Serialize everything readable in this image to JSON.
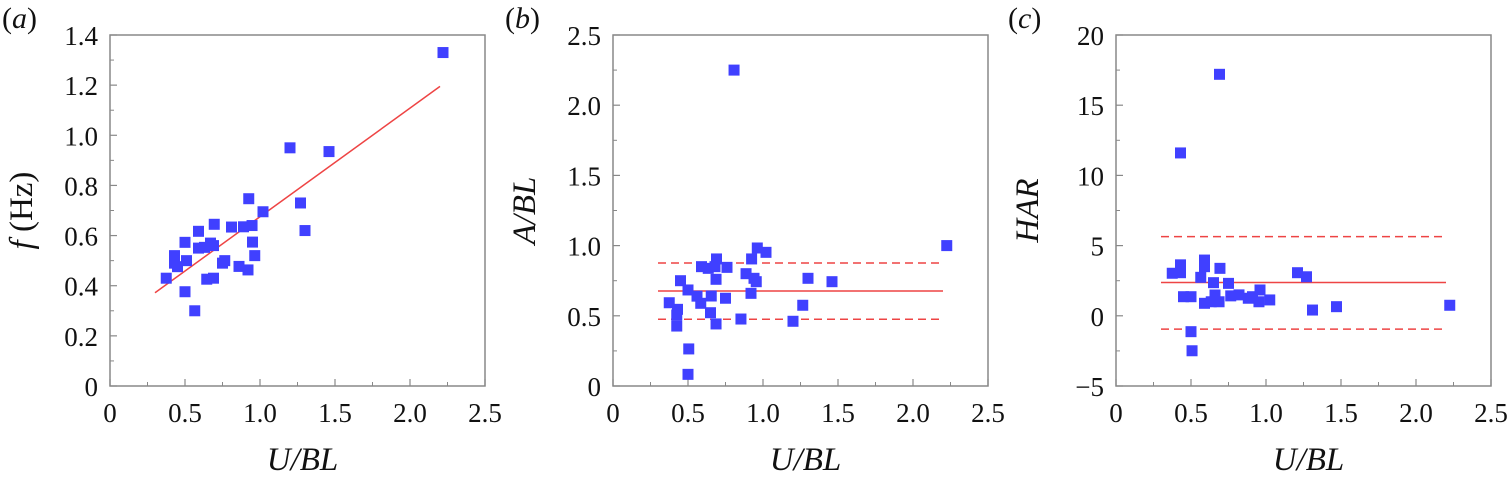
{
  "figure": {
    "marker_color": "#4040ff",
    "line_color": "#ee4444",
    "frame_color": "#888888"
  },
  "chart_data": [
    {
      "type": "scatter",
      "panel_label": "(a)",
      "title": "",
      "xlabel": "U/BL",
      "ylabel": "f (Hz)",
      "xlim": [
        0,
        2.5
      ],
      "ylim": [
        0,
        1.4
      ],
      "xticks": [
        0,
        0.5,
        1.0,
        1.5,
        2.0,
        2.5
      ],
      "xtick_labels": [
        "0",
        "0.5",
        "1.0",
        "1.5",
        "2.0",
        "2.5"
      ],
      "yticks": [
        0,
        0.2,
        0.4,
        0.6,
        0.8,
        1.0,
        1.2,
        1.4
      ],
      "ytick_labels": [
        "0",
        "0.2",
        "0.4",
        "0.6",
        "0.8",
        "1.0",
        "1.2",
        "1.4"
      ],
      "grid": false,
      "series": [
        {
          "name": "data",
          "marker": "square",
          "x": [
            0.375,
            0.43,
            0.43,
            0.45,
            0.5,
            0.51,
            0.5,
            0.565,
            0.59,
            0.59,
            0.645,
            0.69,
            0.695,
            0.67,
            0.69,
            0.63,
            0.75,
            0.765,
            0.81,
            0.86,
            0.89,
            0.925,
            0.947,
            0.92,
            0.95,
            0.965,
            1.02,
            1.2,
            1.27,
            1.3,
            1.46,
            2.22
          ],
          "y": [
            0.43,
            0.52,
            0.49,
            0.476,
            0.573,
            0.5,
            0.376,
            0.3,
            0.617,
            0.55,
            0.426,
            0.43,
            0.645,
            0.57,
            0.56,
            0.553,
            0.49,
            0.5,
            0.634,
            0.477,
            0.635,
            0.747,
            0.64,
            0.463,
            0.574,
            0.52,
            0.695,
            0.95,
            0.73,
            0.62,
            0.935,
            1.33
          ]
        }
      ],
      "lines": [
        {
          "name": "linear-fit",
          "style": "solid",
          "x": [
            0.3,
            2.2
          ],
          "y": [
            0.372,
            1.195
          ]
        }
      ]
    },
    {
      "type": "scatter",
      "panel_label": "(b)",
      "title": "",
      "xlabel": "U/BL",
      "ylabel": "A/BL",
      "xlim": [
        0,
        2.5
      ],
      "ylim": [
        0,
        2.5
      ],
      "xticks": [
        0,
        0.5,
        1.0,
        1.5,
        2.0,
        2.5
      ],
      "xtick_labels": [
        "0",
        "0.5",
        "1.0",
        "1.5",
        "2.0",
        "2.5"
      ],
      "yticks": [
        0,
        0.5,
        1.0,
        1.5,
        2.0,
        2.5
      ],
      "ytick_labels": [
        "0",
        "0.5",
        "1.0",
        "1.5",
        "2.0",
        "2.5"
      ],
      "grid": false,
      "series": [
        {
          "name": "data",
          "marker": "square",
          "x": [
            0.375,
            0.43,
            0.425,
            0.425,
            0.45,
            0.5,
            0.505,
            0.5,
            0.56,
            0.585,
            0.59,
            0.635,
            0.655,
            0.65,
            0.68,
            0.69,
            0.687,
            0.687,
            0.75,
            0.76,
            0.807,
            0.853,
            0.887,
            0.924,
            0.92,
            0.94,
            0.955,
            0.962,
            1.02,
            1.2,
            1.265,
            1.3,
            1.46,
            2.225
          ],
          "y": [
            0.593,
            0.546,
            0.506,
            0.427,
            0.75,
            0.684,
            0.264,
            0.083,
            0.64,
            0.589,
            0.85,
            0.838,
            0.641,
            0.522,
            0.85,
            0.905,
            0.76,
            0.442,
            0.625,
            0.845,
            2.25,
            0.477,
            0.8,
            0.905,
            0.66,
            0.767,
            0.743,
            0.983,
            0.952,
            0.461,
            0.575,
            0.767,
            0.743,
            1.0
          ]
        }
      ],
      "lines": [
        {
          "name": "mean",
          "style": "solid",
          "x": [
            0.3,
            2.2
          ],
          "y": [
            0.677,
            0.677
          ]
        },
        {
          "name": "upper-bound",
          "style": "dashed",
          "x": [
            0.3,
            2.18
          ],
          "y": [
            0.876,
            0.876
          ]
        },
        {
          "name": "lower-bound",
          "style": "dashed",
          "x": [
            0.3,
            2.18
          ],
          "y": [
            0.475,
            0.475
          ]
        }
      ]
    },
    {
      "type": "scatter",
      "panel_label": "(c)",
      "title": "",
      "xlabel": "U/BL",
      "ylabel": "HAR",
      "xlim": [
        0,
        2.5
      ],
      "ylim": [
        -5,
        20
      ],
      "xticks": [
        0,
        0.5,
        1.0,
        1.5,
        2.0,
        2.5
      ],
      "xtick_labels": [
        "0",
        "0.5",
        "1.0",
        "1.5",
        "2.0",
        "2.5"
      ],
      "yticks": [
        -5,
        0,
        5,
        10,
        15,
        20
      ],
      "ytick_labels": [
        "−5",
        "0",
        "5",
        "10",
        "15",
        "20"
      ],
      "grid": false,
      "series": [
        {
          "name": "data",
          "marker": "square",
          "x": [
            0.375,
            0.43,
            0.43,
            0.43,
            0.45,
            0.5,
            0.5,
            0.507,
            0.565,
            0.59,
            0.59,
            0.59,
            0.65,
            0.66,
            0.635,
            0.69,
            0.693,
            0.687,
            0.75,
            0.765,
            0.82,
            0.882,
            0.91,
            0.96,
            0.953,
            1.025,
            1.21,
            1.27,
            1.31,
            1.47,
            2.225
          ],
          "y": [
            3.03,
            3.63,
            11.6,
            3.07,
            1.36,
            1.36,
            -1.13,
            -2.49,
            2.74,
            3.97,
            3.5,
            0.89,
            2.36,
            1.48,
            1.0,
            17.2,
            3.38,
            1.0,
            2.31,
            1.42,
            1.49,
            1.25,
            1.36,
            1.84,
            1.0,
            1.13,
            3.07,
            2.78,
            0.41,
            0.65,
            0.75
          ]
        }
      ],
      "lines": [
        {
          "name": "mean",
          "style": "solid",
          "x": [
            0.3,
            2.2
          ],
          "y": [
            2.37,
            2.37
          ]
        },
        {
          "name": "upper-bound",
          "style": "dashed",
          "x": [
            0.3,
            2.18
          ],
          "y": [
            5.64,
            5.64
          ]
        },
        {
          "name": "lower-bound",
          "style": "dashed",
          "x": [
            0.3,
            2.18
          ],
          "y": [
            -0.95,
            -0.95
          ]
        }
      ]
    }
  ]
}
